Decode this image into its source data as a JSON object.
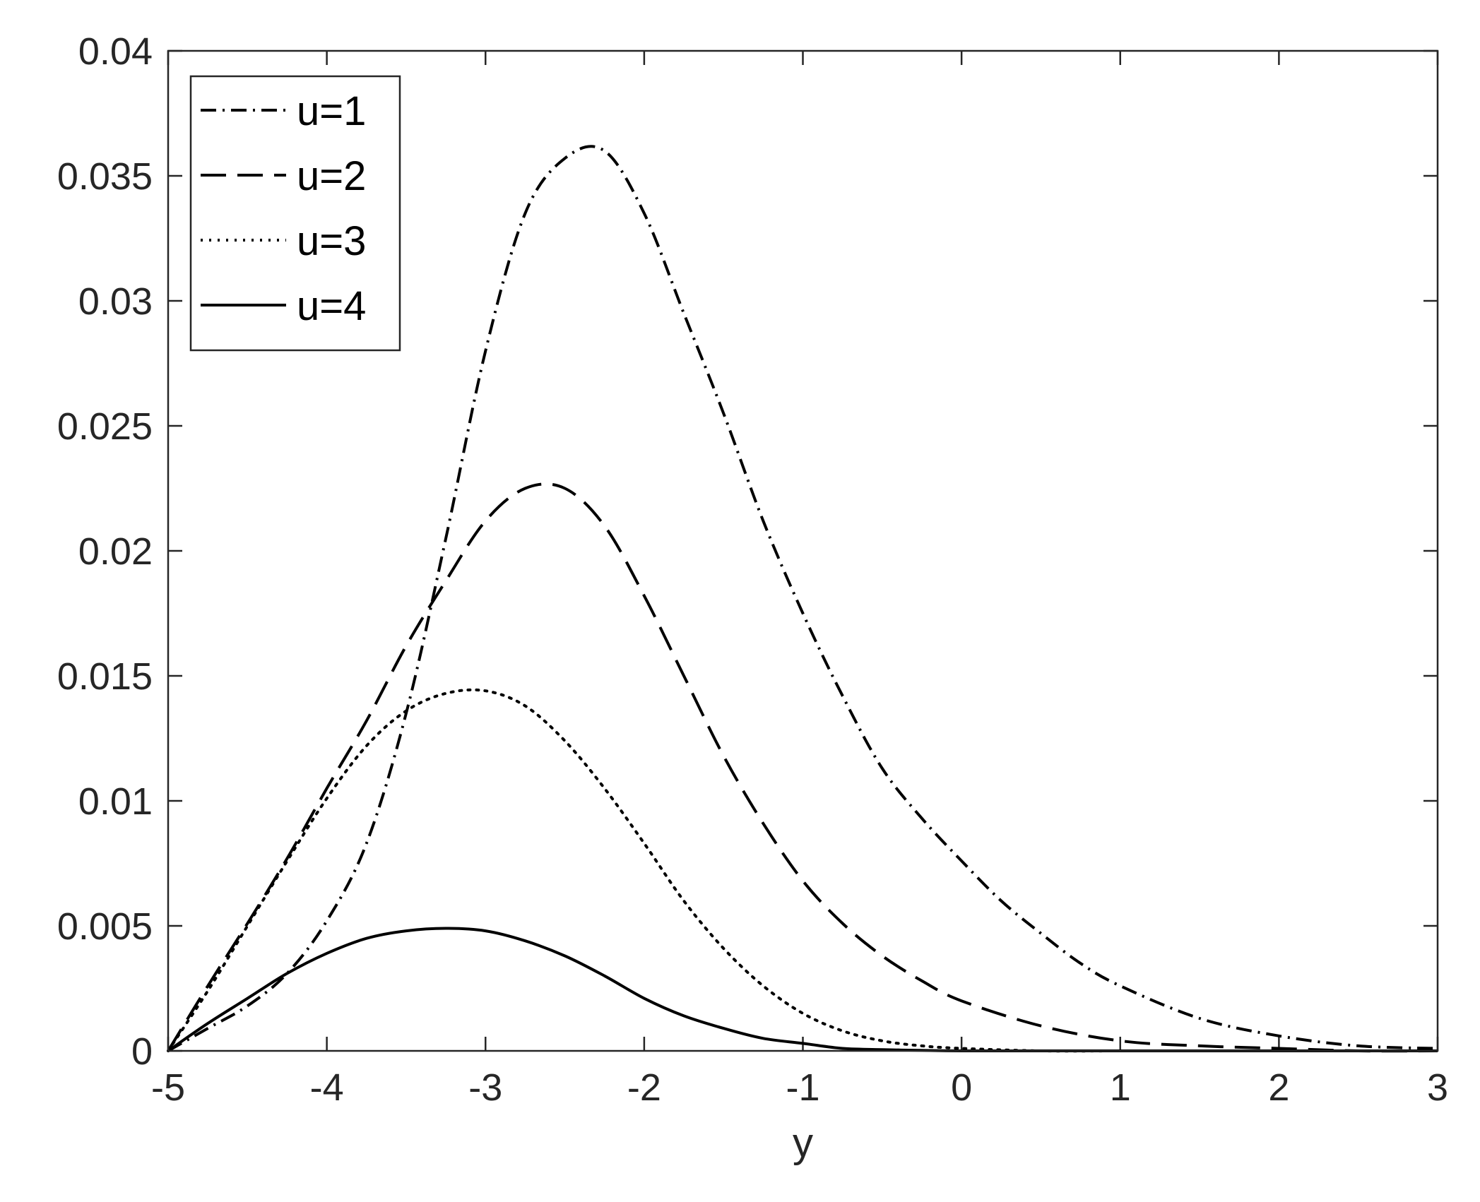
{
  "chart_data": {
    "type": "line",
    "title": "",
    "xlabel": "y",
    "ylabel": "",
    "xlim": [
      -5,
      3
    ],
    "ylim": [
      0,
      0.04
    ],
    "xticks": [
      -5,
      -4,
      -3,
      -2,
      -1,
      0,
      1,
      2,
      3
    ],
    "xtick_labels": [
      "-5",
      "-4",
      "-3",
      "-2",
      "-1",
      "0",
      "1",
      "2",
      "3"
    ],
    "yticks": [
      0,
      0.005,
      0.01,
      0.015,
      0.02,
      0.025,
      0.03,
      0.035,
      0.04
    ],
    "ytick_labels": [
      "0",
      "0.005",
      "0.01",
      "0.015",
      "0.02",
      "0.025",
      "0.03",
      "0.035",
      "0.04"
    ],
    "grid": false,
    "legend_position": "top-left",
    "series": [
      {
        "name": "u=1",
        "style": "dash-dot",
        "color": "#000000",
        "x": [
          -5,
          -4.75,
          -4.5,
          -4.25,
          -4,
          -3.75,
          -3.5,
          -3.25,
          -3,
          -2.75,
          -2.5,
          -2.25,
          -2,
          -1.75,
          -1.5,
          -1.25,
          -1,
          -0.75,
          -0.5,
          -0.25,
          0,
          0.25,
          0.5,
          0.75,
          1,
          1.5,
          2,
          2.5,
          3
        ],
        "y": [
          0,
          0.0009,
          0.0018,
          0.0031,
          0.0052,
          0.0083,
          0.0135,
          0.0205,
          0.028,
          0.0335,
          0.0357,
          0.036,
          0.0335,
          0.0295,
          0.0255,
          0.0212,
          0.0175,
          0.0142,
          0.0113,
          0.0093,
          0.0076,
          0.006,
          0.0047,
          0.0035,
          0.0026,
          0.0013,
          0.0006,
          0.0002,
          0.0001
        ]
      },
      {
        "name": "u=2",
        "style": "dashed",
        "color": "#000000",
        "x": [
          -5,
          -4.75,
          -4.5,
          -4.25,
          -4,
          -3.75,
          -3.5,
          -3.25,
          -3,
          -2.75,
          -2.5,
          -2.25,
          -2,
          -1.75,
          -1.5,
          -1.25,
          -1,
          -0.75,
          -0.5,
          -0.25,
          0,
          0.5,
          1,
          1.5,
          2,
          2.5,
          3
        ],
        "y": [
          0,
          0.0026,
          0.0051,
          0.0077,
          0.0105,
          0.0132,
          0.0162,
          0.0188,
          0.0212,
          0.0225,
          0.0225,
          0.021,
          0.0182,
          0.015,
          0.0118,
          0.0091,
          0.0068,
          0.0051,
          0.0038,
          0.0028,
          0.002,
          0.001,
          0.0004,
          0.0002,
          0.0001,
          0,
          0
        ]
      },
      {
        "name": "u=3",
        "style": "dotted",
        "color": "#000000",
        "x": [
          -5,
          -4.75,
          -4.5,
          -4.25,
          -4,
          -3.75,
          -3.5,
          -3.25,
          -3,
          -2.75,
          -2.5,
          -2.25,
          -2,
          -1.75,
          -1.5,
          -1.25,
          -1,
          -0.75,
          -0.5,
          -0.25,
          0,
          0.5,
          1,
          1.5,
          2,
          3
        ],
        "y": [
          0,
          0.0024,
          0.005,
          0.0076,
          0.0101,
          0.0122,
          0.0136,
          0.0143,
          0.0144,
          0.0138,
          0.0124,
          0.0105,
          0.0083,
          0.006,
          0.0041,
          0.0026,
          0.0015,
          0.0008,
          0.0004,
          0.0002,
          0.0001,
          0,
          0,
          0,
          0,
          0
        ]
      },
      {
        "name": "u=4",
        "style": "solid",
        "color": "#000000",
        "x": [
          -5,
          -4.75,
          -4.5,
          -4.25,
          -4,
          -3.75,
          -3.5,
          -3.25,
          -3,
          -2.75,
          -2.5,
          -2.25,
          -2,
          -1.75,
          -1.5,
          -1.25,
          -1,
          -0.75,
          -0.5,
          -0.25,
          0,
          0.5,
          1,
          2,
          3
        ],
        "y": [
          0,
          0.0011,
          0.0021,
          0.0031,
          0.0039,
          0.0045,
          0.0048,
          0.0049,
          0.0048,
          0.0044,
          0.0038,
          0.003,
          0.0021,
          0.0014,
          0.0009,
          0.0005,
          0.0003,
          0.0001,
          5e-05,
          2e-05,
          0,
          0,
          0,
          0,
          0
        ]
      }
    ]
  }
}
